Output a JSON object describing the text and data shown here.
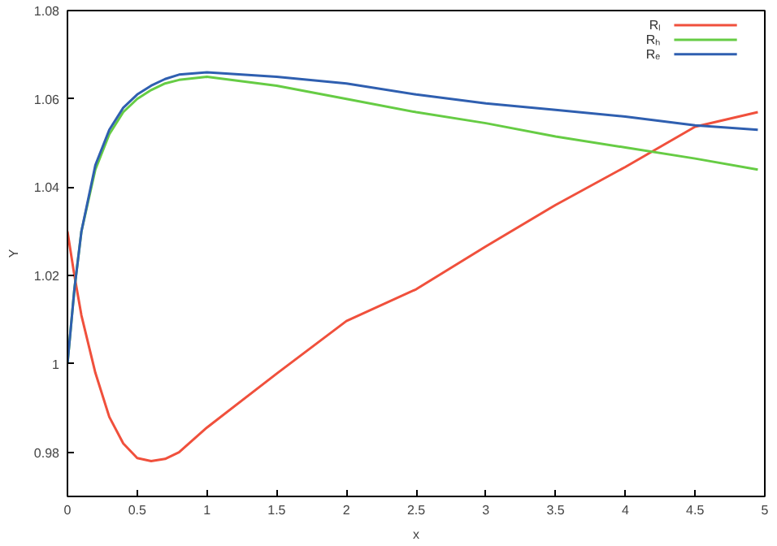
{
  "chart_data": {
    "type": "line",
    "xlabel": "x",
    "ylabel": "Y",
    "xlim": [
      0,
      5
    ],
    "ylim": [
      0.97,
      1.08
    ],
    "xticks": [
      0,
      0.5,
      1,
      1.5,
      2,
      2.5,
      3,
      3.5,
      4,
      4.5,
      5
    ],
    "yticks": [
      {
        "value": 0.98,
        "label": "0.98"
      },
      {
        "value": 1,
        "label": "1"
      },
      {
        "value": 1.02,
        "label": "1.02"
      },
      {
        "value": 1.04,
        "label": "1.04"
      },
      {
        "value": 1.06,
        "label": "1.06"
      },
      {
        "value": 1.08,
        "label": "1.08"
      }
    ],
    "x": [
      0,
      0.05,
      0.1,
      0.2,
      0.3,
      0.4,
      0.5,
      0.6,
      0.7,
      0.8,
      1,
      1.5,
      2,
      2.5,
      3,
      3.5,
      4,
      4.5,
      4.95
    ],
    "series": [
      {
        "name": "Rₗ",
        "color": "#f0503c",
        "values": [
          1.03,
          1.02,
          1.011,
          0.998,
          0.988,
          0.982,
          0.9787,
          0.978,
          0.9785,
          0.98,
          0.9856,
          0.9978,
          1.0097,
          1.0169,
          1.0266,
          1.036,
          1.0446,
          1.0537,
          1.057
        ]
      },
      {
        "name": "Rₕ",
        "color": "#66cc44",
        "values": [
          1.0,
          1.017,
          1.03,
          1.044,
          1.052,
          1.057,
          1.06,
          1.062,
          1.0635,
          1.0643,
          1.065,
          1.063,
          1.06,
          1.057,
          1.0545,
          1.0515,
          1.049,
          1.0465,
          1.044
        ]
      },
      {
        "name": "Rₑ",
        "color": "#2f5fb0",
        "values": [
          1.0,
          1.017,
          1.03,
          1.045,
          1.053,
          1.058,
          1.061,
          1.063,
          1.0645,
          1.0655,
          1.066,
          1.065,
          1.0635,
          1.061,
          1.059,
          1.0575,
          1.056,
          1.054,
          1.053
        ]
      }
    ],
    "legend": "top right",
    "grid": false
  }
}
